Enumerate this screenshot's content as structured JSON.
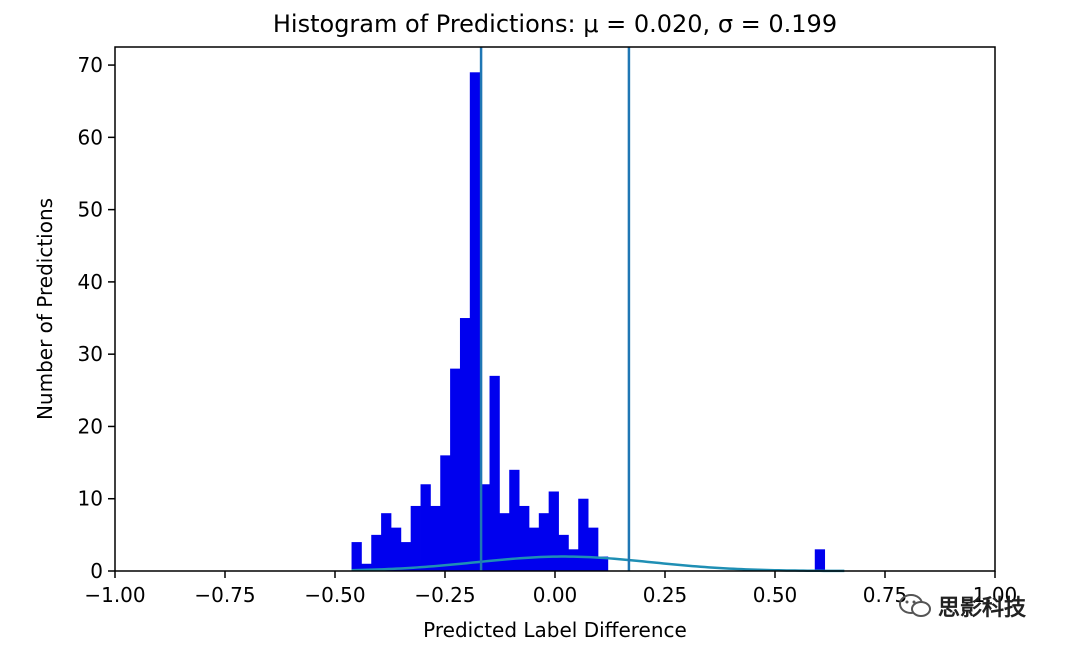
{
  "chart_data": {
    "type": "bar",
    "title": "Histogram of Predictions: μ = 0.020, σ = 0.199",
    "xlabel": "Predicted Label Difference",
    "ylabel": "Number of Predictions",
    "xlim": [
      -1.0,
      1.0
    ],
    "ylim": [
      0,
      72.5
    ],
    "xticks": [
      -1.0,
      -0.75,
      -0.5,
      -0.25,
      0.0,
      0.25,
      0.5,
      0.75,
      1.0
    ],
    "xtick_labels": [
      "−1.00",
      "−0.75",
      "−0.50",
      "−0.25",
      "0.00",
      "0.25",
      "0.50",
      "0.75",
      "1.00"
    ],
    "yticks": [
      0,
      10,
      20,
      30,
      40,
      50,
      60,
      70
    ],
    "ytick_labels": [
      "0",
      "10",
      "20",
      "30",
      "40",
      "50",
      "60",
      "70"
    ],
    "bin_edges": [
      -0.4624,
      -0.44,
      -0.4176,
      -0.3952,
      -0.3728,
      -0.3504,
      -0.328,
      -0.3056,
      -0.2832,
      -0.2608,
      -0.2384,
      -0.216,
      -0.1936,
      -0.1712,
      -0.1488,
      -0.1264,
      -0.104,
      -0.0816,
      -0.0592,
      -0.0368,
      -0.0144,
      0.008,
      0.0304,
      0.0528,
      0.0752,
      0.0976,
      0.12,
      0.1424,
      0.1648,
      0.1872,
      0.2096,
      0.232,
      0.2544,
      0.2768,
      0.2992,
      0.3216,
      0.344,
      0.3664,
      0.3888,
      0.4112,
      0.4336,
      0.456,
      0.4784,
      0.5008,
      0.5232,
      0.5456,
      0.568,
      0.5904,
      0.6128,
      0.6352,
      0.6576
    ],
    "counts": [
      4,
      1,
      5,
      8,
      6,
      4,
      9,
      12,
      9,
      16,
      28,
      35,
      69,
      12,
      27,
      8,
      14,
      9,
      6,
      8,
      11,
      5,
      3,
      10,
      6,
      2,
      0,
      0,
      0,
      0,
      0,
      0,
      0,
      0,
      0,
      0,
      0,
      0,
      0,
      0,
      0,
      0,
      0,
      0,
      0,
      0,
      0,
      3,
      0,
      0
    ],
    "bar_color": "#0000ee",
    "vlines": [
      -0.168,
      0.168
    ],
    "vline_color": "#1f77b4",
    "fit_curve": {
      "mu": 0.02,
      "sigma": 0.199,
      "peak": 2.0,
      "x_range": [
        -0.4624,
        0.6576
      ]
    },
    "grid": false
  },
  "watermark": {
    "text": "思影科技"
  }
}
